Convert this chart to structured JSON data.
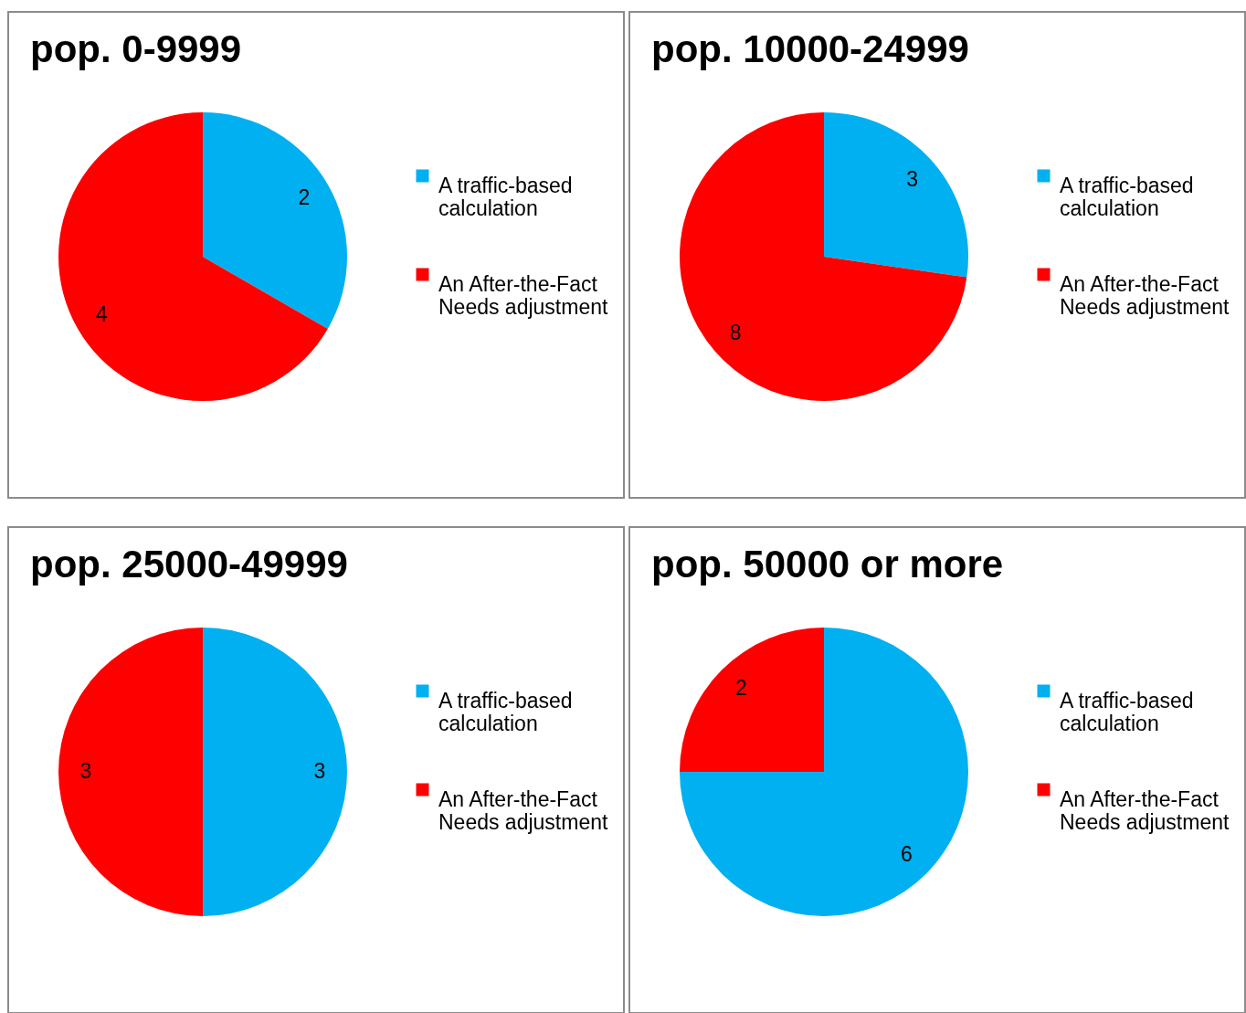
{
  "chart_data": [
    {
      "type": "pie",
      "title": "pop. 0-9999",
      "categories": [
        "A traffic-based calculation",
        "An After-the-Fact Needs adjustment"
      ],
      "values": [
        2,
        4
      ],
      "colors": [
        "#00b0f0",
        "#ff0000"
      ],
      "data_labels": true,
      "legend": "right"
    },
    {
      "type": "pie",
      "title": "pop. 10000-24999",
      "categories": [
        "A traffic-based calculation",
        "An After-the-Fact Needs adjustment"
      ],
      "values": [
        3,
        8
      ],
      "colors": [
        "#00b0f0",
        "#ff0000"
      ],
      "data_labels": true,
      "legend": "right"
    },
    {
      "type": "pie",
      "title": "pop. 25000-49999",
      "categories": [
        "A traffic-based calculation",
        "An After-the-Fact Needs adjustment"
      ],
      "values": [
        3,
        3
      ],
      "colors": [
        "#00b0f0",
        "#ff0000"
      ],
      "data_labels": true,
      "legend": "right"
    },
    {
      "type": "pie",
      "title": "pop. 50000 or more",
      "categories": [
        "A traffic-based calculation",
        "An After-the-Fact Needs adjustment"
      ],
      "values": [
        6,
        2
      ],
      "colors": [
        "#00b0f0",
        "#ff0000"
      ],
      "data_labels": true,
      "legend": "right"
    }
  ]
}
